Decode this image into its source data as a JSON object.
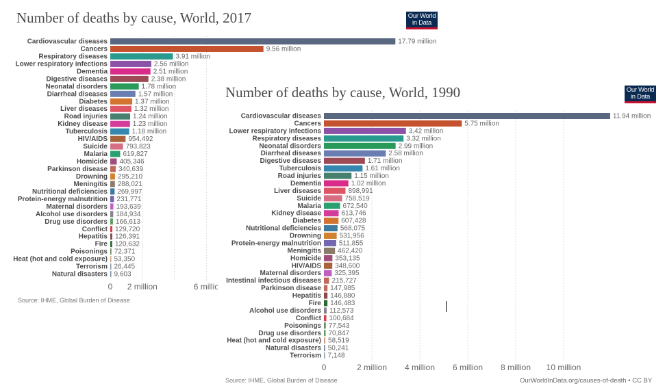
{
  "logo": {
    "line1": "Our World",
    "line2": "in Data"
  },
  "chart_data": [
    {
      "type": "bar",
      "orientation": "horizontal",
      "title": "Number of deaths by cause, World, 2017",
      "source": "Source: IHME, Global Burden of Disease",
      "xlim": [
        0,
        18000000
      ],
      "ticks": [
        0,
        2000000,
        6000000
      ],
      "tick_labels": [
        "0",
        "2 million",
        "6 millio"
      ],
      "gridlines": [
        2000000,
        4000000,
        6000000
      ],
      "grid": true,
      "categories": [
        "Cardiovascular diseases",
        "Cancers",
        "Respiratory diseases",
        "Lower respiratory infections",
        "Dementia",
        "Digestive diseases",
        "Neonatal disorders",
        "Diarrheal diseases",
        "Diabetes",
        "Liver diseases",
        "Road injuries",
        "Kidney disease",
        "Tuberculosis",
        "HIV/AIDS",
        "Suicide",
        "Malaria",
        "Homicide",
        "Parkinson disease",
        "Drowning",
        "Meningitis",
        "Nutritional deficiencies",
        "Protein-energy malnutrition",
        "Maternal disorders",
        "Alcohol use disorders",
        "Drug use disorders",
        "Conflict",
        "Hepatitis",
        "Fire",
        "Poisonings",
        "Heat (hot and cold exposure)",
        "Terrorism",
        "Natural disasters"
      ],
      "values": [
        17790000,
        9560000,
        3910000,
        2560000,
        2510000,
        2380000,
        1780000,
        1570000,
        1370000,
        1320000,
        1240000,
        1230000,
        1180000,
        954492,
        793823,
        619827,
        405346,
        340639,
        295210,
        288021,
        269997,
        231771,
        193639,
        184934,
        166613,
        129720,
        126391,
        120632,
        72371,
        53350,
        26445,
        9603
      ],
      "labels": [
        "17.79 million",
        "9.56 million",
        "3.91 million",
        "2.56 million",
        "2.51 million",
        "2.38 million",
        "1.78 million",
        "1.57 million",
        "1.37 million",
        "1.32 million",
        "1.24 million",
        "1.23 million",
        "1.18 million",
        "954,492",
        "793,823",
        "619,827",
        "405,346",
        "340,639",
        "295,210",
        "288,021",
        "269,997",
        "231,771",
        "193,639",
        "184,934",
        "166,613",
        "129,720",
        "126,391",
        "120,632",
        "72,371",
        "53,350",
        "26,445",
        "9,603"
      ],
      "colors": [
        "#5a6780",
        "#c5522e",
        "#2a9a8e",
        "#8b52a8",
        "#d92c8a",
        "#9c4a55",
        "#2a9a5a",
        "#6a7eb2",
        "#d2732f",
        "#de5565",
        "#488070",
        "#d43c9c",
        "#3587b0",
        "#a9633c",
        "#d66f84",
        "#2aa070",
        "#a24e7c",
        "#c06b5a",
        "#d0822e",
        "#8a7a6a",
        "#3d7aa0",
        "#7467b0",
        "#c060c0",
        "#8a8090",
        "#5aa060",
        "#d84050",
        "#8a4a4a",
        "#2d6a30",
        "#6a8a5a",
        "#d0a080",
        "#8a9aaa",
        "#7a8aa0"
      ]
    },
    {
      "type": "bar",
      "orientation": "horizontal",
      "title": "Number of deaths by cause, World, 1990",
      "source": "Source: IHME, Global Burden of Disease",
      "footer": "OurWorldInData.org/causes-of-death • CC BY",
      "xlim": [
        0,
        12000000
      ],
      "ticks": [
        0,
        2000000,
        4000000,
        6000000,
        8000000,
        10000000
      ],
      "tick_labels": [
        "0",
        "2 million",
        "4 million",
        "6 million",
        "8 million",
        "10 million"
      ],
      "gridlines": [
        2000000,
        4000000,
        6000000,
        8000000,
        10000000
      ],
      "grid": true,
      "categories": [
        "Cardiovascular diseases",
        "Cancers",
        "Lower respiratory infections",
        "Respiratory diseases",
        "Neonatal disorders",
        "Diarrheal diseases",
        "Digestive diseases",
        "Tuberculosis",
        "Road injuries",
        "Dementia",
        "Liver diseases",
        "Suicide",
        "Malaria",
        "Kidney disease",
        "Diabetes",
        "Nutritional deficiencies",
        "Drowning",
        "Protein-energy malnutrition",
        "Meningitis",
        "Homicide",
        "HIV/AIDS",
        "Maternal disorders",
        "Intestinal infectious diseases",
        "Parkinson disease",
        "Hepatitis",
        "Fire",
        "Alcohol use disorders",
        "Conflict",
        "Poisonings",
        "Drug use disorders",
        "Heat (hot and cold exposure)",
        "Natural disasters",
        "Terrorism"
      ],
      "values": [
        11940000,
        5750000,
        3420000,
        3320000,
        2990000,
        2580000,
        1710000,
        1610000,
        1150000,
        1020000,
        898991,
        758519,
        672540,
        613746,
        607428,
        568075,
        531956,
        511855,
        462420,
        353135,
        348600,
        325395,
        215727,
        147985,
        146880,
        146483,
        112573,
        100684,
        77543,
        70847,
        58519,
        50241,
        7148
      ],
      "labels": [
        "11.94 million",
        "5.75 million",
        "3.42 million",
        "3.32 million",
        "2.99 million",
        "2.58 million",
        "1.71 million",
        "1.61 million",
        "1.15 million",
        "1.02 million",
        "898,991",
        "758,519",
        "672,540",
        "613,746",
        "607,428",
        "568,075",
        "531,956",
        "511,855",
        "462,420",
        "353,135",
        "348,600",
        "325,395",
        "215,727",
        "147,985",
        "146,880",
        "146,483",
        "112,573",
        "100,684",
        "77,543",
        "70,847",
        "58,519",
        "50,241",
        "7,148"
      ],
      "colors": [
        "#5a6780",
        "#c5522e",
        "#8b52a8",
        "#2a9a8e",
        "#2a9a5a",
        "#6a7eb2",
        "#9c4a55",
        "#3587b0",
        "#488070",
        "#d92c8a",
        "#de5565",
        "#d66f84",
        "#2aa070",
        "#d43c9c",
        "#d2732f",
        "#3d7aa0",
        "#d0822e",
        "#7467b0",
        "#8a7a6a",
        "#a24e7c",
        "#a9633c",
        "#c060c0",
        "#c06b5a",
        "#c06b5a",
        "#8a4a4a",
        "#2d6a30",
        "#8a8090",
        "#d84050",
        "#6a8a5a",
        "#5aa060",
        "#d0a080",
        "#7a8aa0",
        "#8a9aaa"
      ]
    }
  ]
}
